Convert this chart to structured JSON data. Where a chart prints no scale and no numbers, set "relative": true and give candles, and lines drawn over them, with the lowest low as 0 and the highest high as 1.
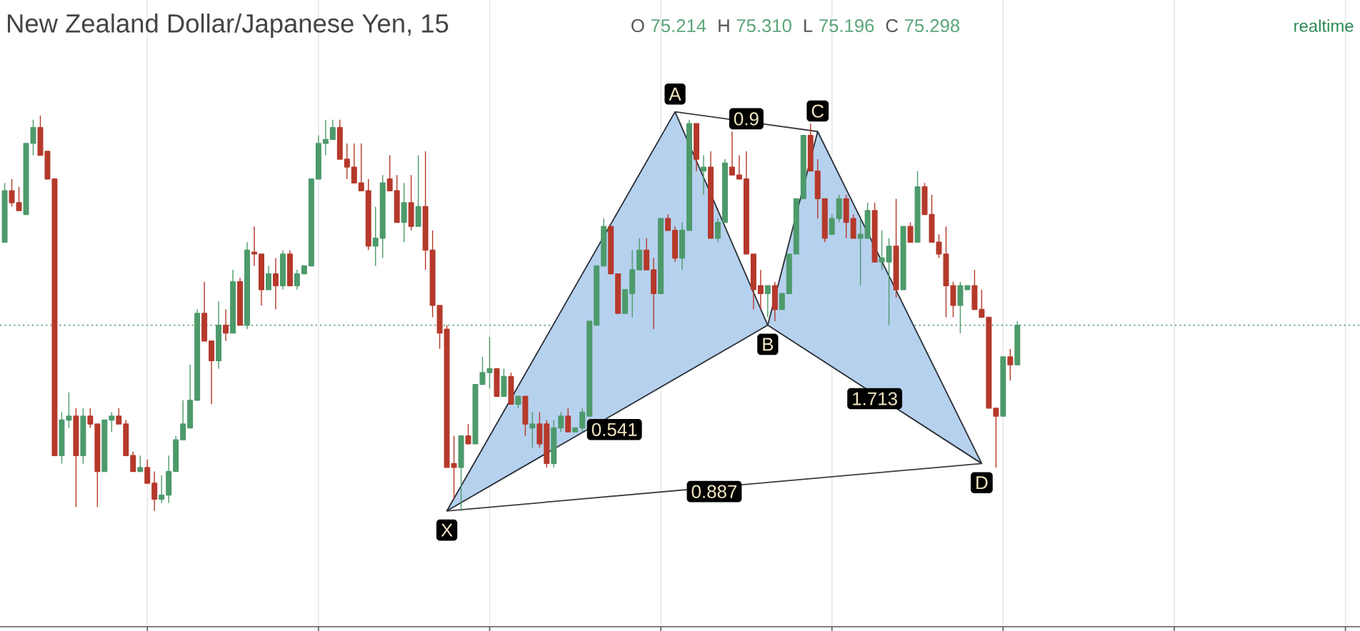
{
  "chart_data": {
    "type": "candlestick",
    "title": "New Zealand Dollar/Japanese Yen, 15",
    "relative": true,
    "grid": true,
    "categories": [
      null,
      null,
      null,
      null,
      null,
      null,
      null,
      null,
      null,
      null,
      null,
      null,
      null,
      null,
      null,
      null,
      null,
      null,
      null,
      null,
      null,
      null,
      null,
      null,
      null,
      null,
      null,
      null,
      null,
      null,
      null,
      null,
      null,
      null,
      null,
      null,
      null,
      null,
      null,
      null,
      null,
      null,
      null,
      null,
      null,
      null,
      null,
      null,
      null,
      null,
      null,
      null,
      null,
      null,
      null,
      null,
      null,
      null,
      null,
      null,
      null,
      null,
      null,
      null,
      null,
      null,
      null,
      null,
      null,
      null,
      null,
      null,
      null,
      null,
      null,
      null,
      null,
      null,
      null,
      null,
      null,
      null,
      null,
      null,
      null,
      null,
      null,
      null,
      null,
      null,
      null,
      null,
      null,
      null,
      null,
      null,
      null,
      null,
      null,
      null,
      null,
      null,
      null,
      null,
      null,
      null,
      null,
      null,
      null,
      null,
      null,
      null,
      null,
      null,
      null,
      null,
      null,
      null,
      null,
      null,
      null,
      null,
      null,
      null,
      null,
      null,
      null,
      null,
      null,
      null,
      null,
      null,
      null,
      null,
      null,
      null,
      null,
      null,
      null,
      null,
      null,
      null,
      null
    ],
    "ohlc": [
      [
        0.68,
        0.83,
        0.68,
        0.81
      ],
      [
        0.81,
        0.84,
        0.77,
        0.78
      ],
      [
        0.78,
        0.82,
        0.76,
        0.76
      ],
      [
        0.75,
        0.93,
        0.75,
        0.93
      ],
      [
        0.93,
        0.99,
        0.9,
        0.97
      ],
      [
        0.97,
        1.0,
        0.9,
        0.9
      ],
      [
        0.91,
        0.91,
        0.84,
        0.84
      ],
      [
        0.84,
        0.84,
        0.14,
        0.14
      ],
      [
        0.14,
        0.25,
        0.12,
        0.23
      ],
      [
        0.23,
        0.3,
        0.21,
        0.24
      ],
      [
        0.24,
        0.26,
        0.01,
        0.14
      ],
      [
        0.14,
        0.26,
        0.12,
        0.24
      ],
      [
        0.24,
        0.26,
        0.21,
        0.22
      ],
      [
        0.22,
        0.22,
        0.01,
        0.1
      ],
      [
        0.1,
        0.23,
        0.1,
        0.23
      ],
      [
        0.23,
        0.25,
        0.2,
        0.24
      ],
      [
        0.24,
        0.26,
        0.22,
        0.22
      ],
      [
        0.22,
        0.23,
        0.14,
        0.14
      ],
      [
        0.14,
        0.15,
        0.1,
        0.1
      ],
      [
        0.1,
        0.14,
        0.1,
        0.11
      ],
      [
        0.11,
        0.13,
        0.07,
        0.07
      ],
      [
        0.07,
        0.1,
        0.0,
        0.03
      ],
      [
        0.03,
        0.09,
        0.02,
        0.04
      ],
      [
        0.04,
        0.14,
        0.02,
        0.1
      ],
      [
        0.1,
        0.19,
        0.1,
        0.18
      ],
      [
        0.18,
        0.28,
        0.18,
        0.22
      ],
      [
        0.21,
        0.37,
        0.21,
        0.28
      ],
      [
        0.28,
        0.51,
        0.28,
        0.5
      ],
      [
        0.5,
        0.58,
        0.43,
        0.43
      ],
      [
        0.43,
        0.43,
        0.27,
        0.38
      ],
      [
        0.38,
        0.53,
        0.36,
        0.47
      ],
      [
        0.47,
        0.51,
        0.43,
        0.45
      ],
      [
        0.45,
        0.61,
        0.45,
        0.58
      ],
      [
        0.58,
        0.59,
        0.47,
        0.47
      ],
      [
        0.47,
        0.68,
        0.46,
        0.66
      ],
      [
        0.655,
        0.72,
        0.62,
        0.65
      ],
      [
        0.65,
        0.65,
        0.52,
        0.56
      ],
      [
        0.56,
        0.62,
        0.56,
        0.6
      ],
      [
        0.6,
        0.64,
        0.51,
        0.57
      ],
      [
        0.57,
        0.66,
        0.56,
        0.65
      ],
      [
        0.65,
        0.66,
        0.57,
        0.57
      ],
      [
        0.57,
        0.61,
        0.56,
        0.6
      ],
      [
        0.6,
        0.62,
        0.6,
        0.62
      ],
      [
        0.62,
        0.84,
        0.62,
        0.84
      ],
      [
        0.84,
        0.95,
        0.84,
        0.93
      ],
      [
        0.93,
        0.99,
        0.9,
        0.94
      ],
      [
        0.94,
        0.99,
        0.94,
        0.97
      ],
      [
        0.97,
        0.99,
        0.89,
        0.89
      ],
      [
        0.89,
        0.93,
        0.84,
        0.87
      ],
      [
        0.87,
        0.93,
        0.83,
        0.83
      ],
      [
        0.83,
        0.93,
        0.81,
        0.81
      ],
      [
        0.81,
        0.84,
        0.66,
        0.67
      ],
      [
        0.67,
        0.77,
        0.62,
        0.69
      ],
      [
        0.69,
        0.85,
        0.64,
        0.83
      ],
      [
        0.84,
        0.9,
        0.81,
        0.81
      ],
      [
        0.81,
        0.85,
        0.73,
        0.73
      ],
      [
        0.73,
        0.83,
        0.68,
        0.78
      ],
      [
        0.78,
        0.85,
        0.71,
        0.72
      ],
      [
        0.72,
        0.9,
        0.72,
        0.77
      ],
      [
        0.77,
        0.91,
        0.61,
        0.66
      ],
      [
        0.66,
        0.71,
        0.49,
        0.52
      ],
      [
        0.52,
        0.52,
        0.41,
        0.45
      ],
      [
        0.46,
        0.47,
        0.11,
        0.11
      ],
      [
        0.12,
        0.19,
        0.03,
        0.11
      ],
      [
        0.11,
        0.19,
        0.0,
        0.19
      ],
      [
        0.19,
        0.22,
        0.17,
        0.17
      ],
      [
        0.17,
        0.32,
        0.17,
        0.32
      ],
      [
        0.32,
        0.39,
        0.32,
        0.35
      ],
      [
        0.35,
        0.44,
        0.31,
        0.36
      ],
      [
        0.36,
        0.36,
        0.29,
        0.29
      ],
      [
        0.29,
        0.36,
        0.29,
        0.34
      ],
      [
        0.34,
        0.35,
        0.27,
        0.27
      ],
      [
        0.27,
        0.29,
        0.26,
        0.29
      ],
      [
        0.29,
        0.29,
        0.19,
        0.22
      ],
      [
        0.21,
        0.25,
        0.16,
        0.22
      ],
      [
        0.22,
        0.25,
        0.16,
        0.17
      ],
      [
        0.22,
        0.23,
        0.11,
        0.12
      ],
      [
        0.12,
        0.23,
        0.11,
        0.21
      ],
      [
        0.21,
        0.25,
        0.2,
        0.24
      ],
      [
        0.24,
        0.26,
        0.2,
        0.2
      ],
      [
        0.2,
        0.21,
        0.2,
        0.21
      ],
      [
        0.21,
        0.26,
        0.2,
        0.25
      ],
      [
        0.24,
        0.48,
        0.24,
        0.48
      ],
      [
        0.47,
        0.62,
        0.47,
        0.62
      ],
      [
        0.62,
        0.74,
        0.62,
        0.72
      ],
      [
        0.72,
        0.72,
        0.6,
        0.6
      ],
      [
        0.6,
        0.6,
        0.5,
        0.5
      ],
      [
        0.5,
        0.56,
        0.5,
        0.56
      ],
      [
        0.55,
        0.66,
        0.49,
        0.61
      ],
      [
        0.61,
        0.69,
        0.61,
        0.66
      ],
      [
        0.66,
        0.69,
        0.61,
        0.61
      ],
      [
        0.61,
        0.64,
        0.46,
        0.55
      ],
      [
        0.55,
        0.74,
        0.55,
        0.74
      ],
      [
        0.74,
        0.75,
        0.71,
        0.71
      ],
      [
        0.71,
        0.72,
        0.63,
        0.64
      ],
      [
        0.64,
        0.73,
        0.61,
        0.71
      ],
      [
        0.71,
        0.99,
        0.71,
        0.98
      ],
      [
        0.98,
        0.98,
        0.86,
        0.89
      ],
      [
        0.86,
        0.9,
        0.8,
        0.87
      ],
      [
        0.87,
        0.91,
        0.69,
        0.69
      ],
      [
        0.69,
        0.74,
        0.68,
        0.73
      ],
      [
        0.73,
        0.89,
        0.73,
        0.88
      ],
      [
        0.87,
        0.96,
        0.85,
        0.85
      ],
      [
        0.85,
        0.9,
        0.84,
        0.84
      ],
      [
        0.84,
        0.91,
        0.65,
        0.65
      ],
      [
        0.65,
        0.65,
        0.51,
        0.56
      ],
      [
        0.57,
        0.61,
        0.51,
        0.55
      ],
      [
        0.55,
        0.57,
        0.49,
        0.57
      ],
      [
        0.57,
        0.58,
        0.48,
        0.51
      ],
      [
        0.51,
        0.55,
        0.51,
        0.55
      ],
      [
        0.55,
        0.65,
        0.55,
        0.65
      ],
      [
        0.65,
        0.79,
        0.65,
        0.79
      ],
      [
        0.79,
        0.95,
        0.79,
        0.95
      ],
      [
        0.95,
        0.98,
        0.86,
        0.86
      ],
      [
        0.86,
        0.89,
        0.74,
        0.79
      ],
      [
        0.79,
        0.79,
        0.68,
        0.69
      ],
      [
        0.7,
        0.75,
        0.7,
        0.74
      ],
      [
        0.74,
        0.8,
        0.73,
        0.79
      ],
      [
        0.79,
        0.8,
        0.69,
        0.73
      ],
      [
        0.74,
        0.75,
        0.69,
        0.69
      ],
      [
        0.69,
        0.74,
        0.57,
        0.7
      ],
      [
        0.69,
        0.78,
        0.69,
        0.76
      ],
      [
        0.76,
        0.78,
        0.63,
        0.63
      ],
      [
        0.63,
        0.71,
        0.61,
        0.64
      ],
      [
        0.63,
        0.69,
        0.47,
        0.67
      ],
      [
        0.67,
        0.79,
        0.54,
        0.56
      ],
      [
        0.56,
        0.72,
        0.56,
        0.72
      ],
      [
        0.72,
        0.73,
        0.68,
        0.68
      ],
      [
        0.68,
        0.86,
        0.68,
        0.82
      ],
      [
        0.82,
        0.83,
        0.75,
        0.75
      ],
      [
        0.75,
        0.8,
        0.68,
        0.68
      ],
      [
        0.68,
        0.7,
        0.64,
        0.65
      ],
      [
        0.65,
        0.72,
        0.49,
        0.57
      ],
      [
        0.57,
        0.58,
        0.49,
        0.52
      ],
      [
        0.52,
        0.58,
        0.45,
        0.57
      ],
      [
        0.56,
        0.57,
        0.56,
        0.57
      ],
      [
        0.57,
        0.61,
        0.51,
        0.51
      ],
      [
        0.51,
        0.56,
        0.49,
        0.49
      ],
      [
        0.49,
        0.49,
        0.26,
        0.26
      ],
      [
        0.26,
        0.26,
        0.11,
        0.24
      ],
      [
        0.24,
        0.39,
        0.24,
        0.39
      ],
      [
        0.39,
        0.41,
        0.33,
        0.37
      ],
      [
        0.37,
        0.48,
        0.37,
        0.47
      ]
    ],
    "colors": [
      "#4d9a6b",
      "#b5392b",
      "#b5392b",
      "#4d9a6b",
      "#4d9a6b",
      "#b5392b",
      "#b5392b",
      "#b5392b",
      "#4d9a6b",
      "#4d9a6b",
      "#b5392b",
      "#4d9a6b",
      "#b5392b",
      "#b5392b",
      "#4d9a6b",
      "#4d9a6b",
      "#b5392b",
      "#b5392b",
      "#b5392b",
      "#4d9a6b",
      "#b5392b",
      "#b5392b",
      "#4d9a6b",
      "#4d9a6b",
      "#4d9a6b",
      "#4d9a6b",
      "#4d9a6b",
      "#4d9a6b",
      "#b5392b",
      "#b5392b",
      "#4d9a6b",
      "#b5392b",
      "#4d9a6b",
      "#b5392b",
      "#4d9a6b",
      "#b5392b",
      "#b5392b",
      "#4d9a6b",
      "#b5392b",
      "#4d9a6b",
      "#b5392b",
      "#4d9a6b",
      "#4d9a6b",
      "#4d9a6b",
      "#4d9a6b",
      "#4d9a6b",
      "#4d9a6b",
      "#b5392b",
      "#b5392b",
      "#b5392b",
      "#b5392b",
      "#b5392b",
      "#4d9a6b",
      "#4d9a6b",
      "#b5392b",
      "#b5392b",
      "#4d9a6b",
      "#b5392b",
      "#4d9a6b",
      "#b5392b",
      "#b5392b",
      "#b5392b",
      "#b5392b",
      "#b5392b",
      "#4d9a6b",
      "#b5392b",
      "#4d9a6b",
      "#4d9a6b",
      "#4d9a6b",
      "#b5392b",
      "#4d9a6b",
      "#b5392b",
      "#4d9a6b",
      "#b5392b",
      "#4d9a6b",
      "#b5392b",
      "#b5392b",
      "#4d9a6b",
      "#4d9a6b",
      "#b5392b",
      "#4d9a6b",
      "#4d9a6b",
      "#4d9a6b",
      "#4d9a6b",
      "#4d9a6b",
      "#b5392b",
      "#b5392b",
      "#4d9a6b",
      "#4d9a6b",
      "#4d9a6b",
      "#b5392b",
      "#b5392b",
      "#4d9a6b",
      "#b5392b",
      "#b5392b",
      "#4d9a6b",
      "#4d9a6b",
      "#b5392b",
      "#4d9a6b",
      "#b5392b",
      "#4d9a6b",
      "#4d9a6b",
      "#b5392b",
      "#b5392b",
      "#b5392b",
      "#b5392b",
      "#b5392b",
      "#4d9a6b",
      "#b5392b",
      "#4d9a6b",
      "#4d9a6b",
      "#4d9a6b",
      "#4d9a6b",
      "#b5392b",
      "#b5392b",
      "#b5392b",
      "#4d9a6b",
      "#4d9a6b",
      "#b5392b",
      "#b5392b",
      "#4d9a6b",
      "#4d9a6b",
      "#b5392b",
      "#4d9a6b",
      "#4d9a6b",
      "#b5392b",
      "#4d9a6b",
      "#b5392b",
      "#4d9a6b",
      "#b5392b",
      "#b5392b",
      "#b5392b",
      "#b5392b",
      "#b5392b",
      "#4d9a6b",
      "#4d9a6b",
      "#b5392b",
      "#b5392b",
      "#b5392b",
      "#b5392b",
      "#4d9a6b",
      "#b5392b",
      "#4d9a6b"
    ],
    "series": [
      {
        "type": "area",
        "color": "#b6d1ee",
        "values": [
          null,
          null,
          null,
          null,
          null,
          null,
          null,
          null,
          null,
          null,
          null,
          null,
          null,
          null,
          null,
          null,
          null,
          null,
          null,
          null,
          null,
          null,
          null,
          null,
          null,
          null,
          null,
          null,
          null,
          null,
          null,
          null,
          null,
          null,
          null,
          null,
          null,
          null,
          null,
          null,
          null,
          null,
          null,
          null,
          null,
          null,
          null,
          null,
          null,
          null,
          null,
          null,
          null,
          null,
          null,
          null,
          null,
          null,
          null,
          null,
          null,
          null,
          0.0,
          null,
          null,
          null,
          null,
          null,
          null,
          null,
          null,
          null,
          null,
          null,
          null,
          null,
          null,
          null,
          null,
          null,
          null,
          null,
          null,
          null,
          null,
          null,
          null,
          null,
          null,
          null,
          null,
          null,
          null,
          null,
          1.01,
          null,
          null,
          null,
          null,
          null,
          null,
          null,
          null,
          null,
          null,
          null,
          null,
          0.47,
          null,
          null,
          null,
          null,
          null,
          null,
          null,
          null,
          null,
          null,
          null,
          null,
          null,
          null,
          null,
          null,
          null,
          null,
          null,
          null,
          null,
          null,
          null,
          null,
          null,
          null,
          null,
          null,
          null,
          null,
          null,
          null,
          null,
          null,
          null
        ]
      },
      {
        "type": "line",
        "color": "#3c3c3c",
        "values": [
          null,
          null,
          null,
          null,
          null,
          null,
          null,
          null,
          null,
          null,
          null,
          null,
          null,
          null,
          null,
          null,
          null,
          null,
          null,
          null,
          null,
          null,
          null,
          null,
          null,
          null,
          null,
          null,
          null,
          null,
          null,
          null,
          null,
          null,
          null,
          null,
          null,
          null,
          null,
          null,
          null,
          null,
          null,
          null,
          null,
          null,
          null,
          null,
          null,
          null,
          null,
          null,
          null,
          null,
          null,
          null,
          null,
          null,
          null,
          null,
          null,
          null,
          null,
          null,
          null,
          null,
          null,
          null,
          null,
          null,
          null,
          null,
          null,
          null,
          null,
          null,
          null,
          null,
          null,
          null,
          null,
          null,
          null,
          null,
          null,
          null,
          null,
          null,
          null,
          null,
          null,
          null,
          null,
          null,
          1.01,
          null,
          null,
          null,
          null,
          null,
          null,
          null,
          null,
          null,
          null,
          null,
          null,
          null,
          null,
          null,
          null,
          null,
          null,
          null,
          0.96,
          null,
          null,
          null,
          null,
          null,
          null,
          null,
          null,
          null,
          null,
          null,
          null,
          null,
          null,
          null,
          null,
          null,
          null,
          null,
          null,
          null,
          null,
          null,
          null,
          null,
          null,
          null,
          null
        ]
      },
      {
        "type": "area",
        "color": "#b6d1ee",
        "values": [
          null,
          null,
          null,
          null,
          null,
          null,
          null,
          null,
          null,
          null,
          null,
          null,
          null,
          null,
          null,
          null,
          null,
          null,
          null,
          null,
          null,
          null,
          null,
          null,
          null,
          null,
          null,
          null,
          null,
          null,
          null,
          null,
          null,
          null,
          null,
          null,
          null,
          null,
          null,
          null,
          null,
          null,
          null,
          null,
          null,
          null,
          null,
          null,
          null,
          null,
          null,
          null,
          null,
          null,
          null,
          null,
          null,
          null,
          null,
          null,
          null,
          null,
          null,
          null,
          null,
          null,
          null,
          null,
          null,
          null,
          null,
          null,
          null,
          null,
          null,
          null,
          null,
          null,
          null,
          null,
          null,
          null,
          null,
          null,
          null,
          null,
          null,
          null,
          null,
          null,
          null,
          null,
          null,
          null,
          null,
          null,
          null,
          null,
          null,
          null,
          null,
          null,
          null,
          null,
          null,
          null,
          null,
          0.47,
          null,
          null,
          null,
          null,
          null,
          null,
          0.96,
          null,
          null,
          null,
          null,
          null,
          null,
          null,
          null,
          null,
          null,
          null,
          null,
          null,
          null,
          null,
          null,
          null,
          null,
          null,
          null,
          null,
          null,
          0.12,
          null,
          null,
          null,
          null,
          null
        ]
      },
      {
        "type": "line",
        "color": "#3c3c3c",
        "values": [
          null,
          null,
          null,
          null,
          null,
          null,
          null,
          null,
          null,
          null,
          null,
          null,
          null,
          null,
          null,
          null,
          null,
          null,
          null,
          null,
          null,
          null,
          null,
          null,
          null,
          null,
          null,
          null,
          null,
          null,
          null,
          null,
          null,
          null,
          null,
          null,
          null,
          null,
          null,
          null,
          null,
          null,
          null,
          null,
          null,
          null,
          null,
          null,
          null,
          null,
          null,
          null,
          null,
          null,
          null,
          null,
          null,
          null,
          null,
          null,
          null,
          null,
          0.0,
          null,
          null,
          null,
          null,
          null,
          null,
          null,
          null,
          null,
          null,
          null,
          null,
          null,
          null,
          null,
          null,
          null,
          null,
          null,
          null,
          null,
          null,
          null,
          null,
          null,
          null,
          null,
          null,
          null,
          null,
          null,
          null,
          null,
          null,
          null,
          null,
          null,
          null,
          null,
          null,
          null,
          null,
          null,
          null,
          null,
          null,
          null,
          null,
          null,
          null,
          null,
          null,
          null,
          null,
          null,
          null,
          null,
          null,
          null,
          null,
          null,
          null,
          null,
          null,
          null,
          null,
          null,
          null,
          null,
          null,
          null,
          null,
          null,
          null,
          0.12,
          null,
          null,
          null,
          null,
          null
        ]
      }
    ],
    "ref_lines": [
      {
        "axis": "y",
        "value": 0.47,
        "color": "#5ca77c",
        "line_style": "dotted"
      }
    ],
    "annotations": [
      "O",
      "75.214",
      "H",
      "75.310",
      "L",
      "75.196",
      "C",
      "75.298",
      "realtime",
      "0.541",
      "0.9",
      "1.713",
      "0.887",
      {
        "text": "X",
        "y": 0.0
      },
      {
        "text": "A",
        "y": 1.01
      },
      {
        "text": "B",
        "y": 0.47
      },
      {
        "text": "C",
        "y": 0.96
      },
      {
        "text": "D",
        "y": 0.12
      }
    ]
  }
}
